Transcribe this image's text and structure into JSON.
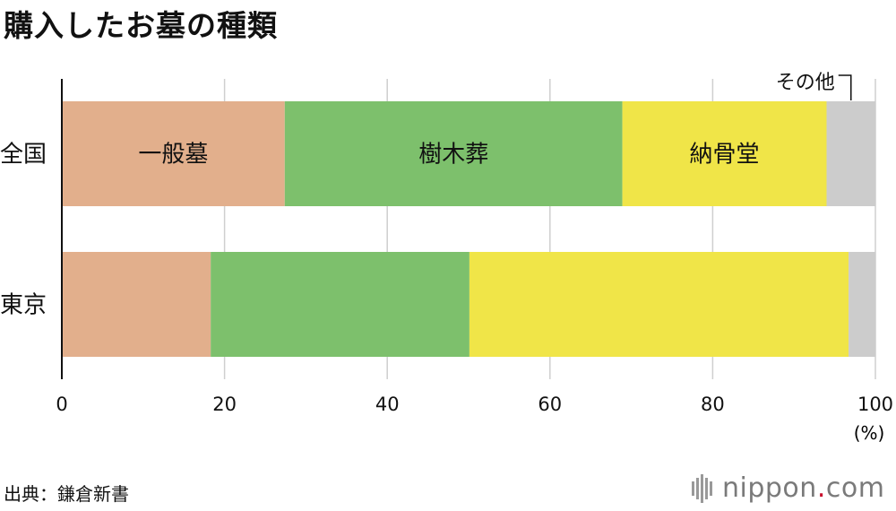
{
  "title": "購入したお墓の種類",
  "source": "出典：鎌倉新書",
  "brand": {
    "name": "nippon",
    "dot": ".",
    "tld": "com"
  },
  "chart_data": {
    "type": "bar",
    "orientation": "horizontal",
    "stacked": true,
    "categories": [
      "全国",
      "東京"
    ],
    "series": [
      {
        "name": "一般墓",
        "color": "#e2af8c",
        "values": [
          27.4,
          18.3
        ]
      },
      {
        "name": "樹木葬",
        "color": "#7dc06c",
        "values": [
          41.5,
          31.8
        ]
      },
      {
        "name": "納骨堂",
        "color": "#f0e548",
        "values": [
          25.1,
          46.6
        ]
      },
      {
        "name": "その他",
        "color": "#cccccc",
        "values": [
          6.0,
          3.3
        ]
      }
    ],
    "xlim": [
      0,
      100
    ],
    "xticks": [
      0,
      20,
      40,
      60,
      80,
      100
    ],
    "xunit": "(%)",
    "grid": true,
    "legend": "inline labels on top bar"
  }
}
